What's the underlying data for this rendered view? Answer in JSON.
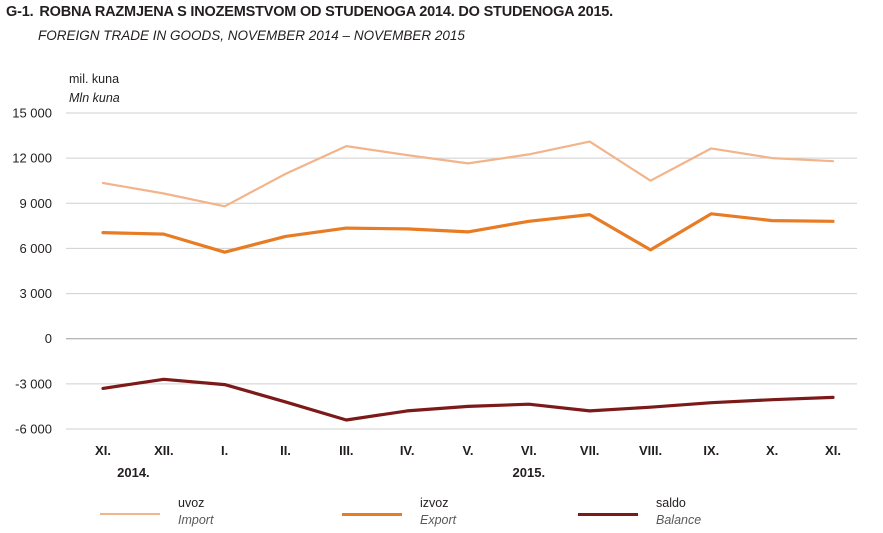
{
  "title": {
    "number": "G-1.",
    "main": "ROBNA RAZMJENA S INOZEMSTVOM OD STUDENOGA 2014. DO STUDENOGA 2015.",
    "sub": "FOREIGN TRADE IN GOODS, NOVEMBER 2014 – NOVEMBER 2015"
  },
  "chart_data": {
    "type": "line",
    "ylabel": "mil. kuna",
    "ylabel_en": "Mln kuna",
    "ylim": [
      -6000,
      15000
    ],
    "yticks": [
      15000,
      12000,
      9000,
      6000,
      3000,
      0,
      -3000,
      -6000
    ],
    "ytick_labels": [
      "15 000",
      "12 000",
      "9 000",
      "6 000",
      "3 000",
      "0",
      "-3 000",
      "-6 000"
    ],
    "grid": true,
    "categories": [
      "XI.",
      "XII.",
      "I.",
      "II.",
      "III.",
      "IV.",
      "V.",
      "VI.",
      "VII.",
      "VIII.",
      "IX.",
      "X.",
      "XI."
    ],
    "year_labels": [
      {
        "label": "2014.",
        "category_index": 0.5
      },
      {
        "label": "2015.",
        "category_index": 7
      }
    ],
    "series": [
      {
        "name": "uvoz",
        "name_en": "Import",
        "color": "#f2b48b",
        "width": 2.2,
        "values": [
          10350,
          9650,
          8800,
          10950,
          12800,
          12200,
          11650,
          12250,
          13100,
          10500,
          12650,
          12000,
          11800
        ]
      },
      {
        "name": "izvoz",
        "name_en": "Export",
        "color": "#e87c24",
        "width": 3.2,
        "values": [
          7050,
          6950,
          5750,
          6800,
          7350,
          7300,
          7100,
          7800,
          8250,
          5900,
          8300,
          7850,
          7800
        ]
      },
      {
        "name": "saldo",
        "name_en": "Balance",
        "color": "#7c1a1a",
        "width": 3.2,
        "values": [
          -3300,
          -2700,
          -3050,
          -4200,
          -5400,
          -4800,
          -4500,
          -4350,
          -4800,
          -4550,
          -4250,
          -4050,
          -3900
        ]
      }
    ],
    "legend_placement": "bottom"
  }
}
